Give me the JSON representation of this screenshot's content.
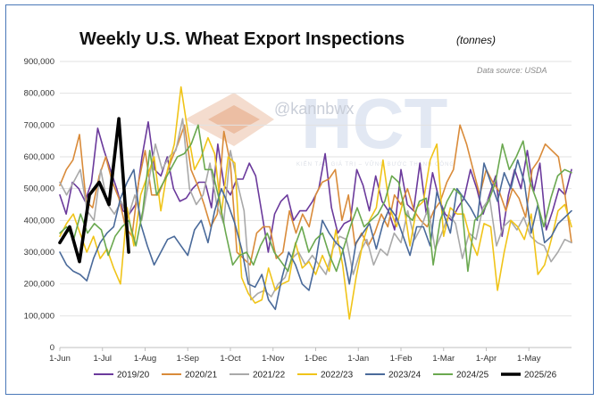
{
  "chart_data": {
    "type": "line",
    "title": "Weekly U.S. Wheat Export Inspections",
    "subtitle": "(tonnes)",
    "source_note": "Data source: USDA",
    "xlabel": "",
    "ylabel": "",
    "ylim": [
      0,
      900000
    ],
    "y_ticks": [
      0,
      100000,
      200000,
      300000,
      400000,
      500000,
      600000,
      700000,
      800000,
      900000
    ],
    "y_tick_labels": [
      "0",
      "100,000",
      "200,000",
      "300,000",
      "400,000",
      "500,000",
      "600,000",
      "700,000",
      "800,000",
      "900,000"
    ],
    "x_tick_labels": [
      "1-Jun",
      "1-Jul",
      "1-Aug",
      "1-Sep",
      "1-Oct",
      "1-Nov",
      "1-Dec",
      "1-Jan",
      "1-Feb",
      "1-Mar",
      "1-Apr",
      "1-May"
    ],
    "x_unit": "week of marketing year (Jun 1 start)",
    "grid": "horizontal",
    "legend_position": "bottom",
    "series": [
      {
        "name": "2019/20",
        "color": "#6b3a9c",
        "values": [
          480000,
          420000,
          520000,
          500000,
          460000,
          520000,
          690000,
          620000,
          560000,
          500000,
          430000,
          420000,
          450000,
          600000,
          710000,
          560000,
          540000,
          600000,
          500000,
          460000,
          470000,
          500000,
          520000,
          520000,
          440000,
          640000,
          510000,
          480000,
          530000,
          530000,
          580000,
          540000,
          420000,
          300000,
          420000,
          460000,
          480000,
          400000,
          430000,
          430000,
          460000,
          500000,
          610000,
          440000,
          360000,
          390000,
          400000,
          560000,
          510000,
          430000,
          540000,
          460000,
          430000,
          370000,
          560000,
          450000,
          430000,
          580000,
          420000,
          550000,
          470000,
          420000,
          400000,
          440000,
          470000,
          560000,
          500000,
          420000,
          480000,
          540000,
          350000,
          480000,
          560000,
          500000,
          620000,
          490000,
          580000,
          370000,
          430000,
          500000,
          480000,
          560000
        ]
      },
      {
        "name": "2020/21",
        "color": "#d98b3a",
        "values": [
          510000,
          560000,
          590000,
          670000,
          460000,
          440000,
          540000,
          600000,
          520000,
          470000,
          380000,
          350000,
          520000,
          620000,
          480000,
          480000,
          530000,
          590000,
          640000,
          700000,
          560000,
          510000,
          450000,
          380000,
          420000,
          680000,
          580000,
          300000,
          280000,
          260000,
          360000,
          380000,
          380000,
          280000,
          300000,
          430000,
          360000,
          420000,
          380000,
          480000,
          520000,
          530000,
          560000,
          400000,
          480000,
          320000,
          360000,
          320000,
          360000,
          420000,
          380000,
          480000,
          450000,
          500000,
          430000,
          400000,
          380000,
          430000,
          460000,
          520000,
          560000,
          700000,
          640000,
          560000,
          480000,
          560000,
          520000,
          490000,
          430000,
          500000,
          470000,
          410000,
          560000,
          590000,
          640000,
          620000,
          600000,
          480000,
          330000
        ]
      },
      {
        "name": "2021/22",
        "color": "#a9a9a9",
        "values": [
          520000,
          480000,
          520000,
          560000,
          430000,
          400000,
          560000,
          450000,
          420000,
          460000,
          410000,
          480000,
          400000,
          520000,
          640000,
          560000,
          600000,
          620000,
          720000,
          500000,
          450000,
          480000,
          580000,
          450000,
          390000,
          620000,
          520000,
          430000,
          150000,
          170000,
          180000,
          160000,
          200000,
          220000,
          280000,
          300000,
          260000,
          290000,
          260000,
          230000,
          310000,
          350000,
          340000,
          230000,
          300000,
          340000,
          260000,
          310000,
          290000,
          360000,
          330000,
          430000,
          340000,
          380000,
          440000,
          310000,
          360000,
          420000,
          390000,
          280000,
          360000,
          340000,
          440000,
          470000,
          320000,
          380000,
          400000,
          370000,
          410000,
          350000,
          330000,
          320000,
          270000,
          300000,
          340000,
          330000
        ]
      },
      {
        "name": "2022/23",
        "color": "#f0c419",
        "values": [
          350000,
          390000,
          420000,
          360000,
          300000,
          350000,
          280000,
          310000,
          250000,
          200000,
          440000,
          320000,
          480000,
          540000,
          600000,
          430000,
          560000,
          640000,
          820000,
          680000,
          560000,
          600000,
          660000,
          610000,
          420000,
          600000,
          580000,
          220000,
          170000,
          140000,
          150000,
          250000,
          180000,
          200000,
          210000,
          330000,
          250000,
          270000,
          230000,
          290000,
          240000,
          370000,
          260000,
          90000,
          220000,
          330000,
          400000,
          440000,
          590000,
          440000,
          380000,
          460000,
          320000,
          440000,
          460000,
          590000,
          640000,
          350000,
          440000,
          420000,
          420000,
          340000,
          290000,
          390000,
          380000,
          180000,
          300000,
          400000,
          380000,
          340000,
          420000,
          230000,
          260000,
          340000,
          430000,
          450000,
          380000
        ]
      },
      {
        "name": "2023/24",
        "color": "#4a6a9a",
        "values": [
          300000,
          260000,
          240000,
          230000,
          210000,
          280000,
          330000,
          360000,
          380000,
          470000,
          520000,
          560000,
          390000,
          320000,
          260000,
          300000,
          340000,
          350000,
          320000,
          290000,
          370000,
          400000,
          330000,
          430000,
          500000,
          450000,
          390000,
          310000,
          200000,
          190000,
          230000,
          150000,
          120000,
          220000,
          300000,
          260000,
          200000,
          180000,
          270000,
          400000,
          360000,
          330000,
          310000,
          200000,
          330000,
          360000,
          390000,
          310000,
          390000,
          440000,
          410000,
          350000,
          290000,
          380000,
          380000,
          320000,
          490000,
          420000,
          360000,
          500000,
          470000,
          440000,
          400000,
          580000,
          520000,
          460000,
          550000,
          500000,
          590000,
          520000,
          360000,
          450000,
          330000,
          350000,
          390000,
          410000,
          430000
        ]
      },
      {
        "name": "2024/25",
        "color": "#6aa84f",
        "values": [
          360000,
          380000,
          340000,
          420000,
          360000,
          390000,
          370000,
          290000,
          350000,
          380000,
          400000,
          320000,
          430000,
          620000,
          480000,
          520000,
          560000,
          600000,
          610000,
          640000,
          700000,
          560000,
          560000,
          470000,
          360000,
          260000,
          290000,
          300000,
          260000,
          320000,
          360000,
          300000,
          270000,
          240000,
          320000,
          380000,
          300000,
          340000,
          360000,
          290000,
          240000,
          310000,
          380000,
          440000,
          380000,
          400000,
          420000,
          460000,
          540000,
          520000,
          420000,
          400000,
          460000,
          470000,
          260000,
          400000,
          460000,
          500000,
          480000,
          240000,
          400000,
          420000,
          460000,
          520000,
          640000,
          560000,
          600000,
          650000,
          520000,
          460000,
          380000,
          470000,
          540000,
          560000,
          550000
        ]
      },
      {
        "name": "2025/26",
        "color": "#000000",
        "values": [
          330000,
          380000,
          270000,
          480000,
          520000,
          450000,
          720000,
          300000
        ]
      }
    ]
  },
  "watermark": {
    "handle": "@kannbwx",
    "logo": "HCT",
    "tagline": "KIẾN TẠO GIÁ TRỊ – VỮNG BƯỚC THÀNH CÔNG"
  }
}
